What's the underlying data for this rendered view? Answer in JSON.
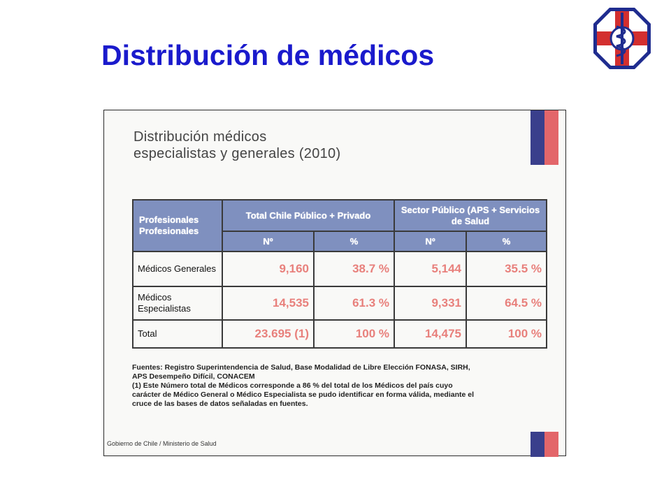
{
  "page": {
    "title": "Distribución de médicos"
  },
  "colors": {
    "title_blue": "#1a1acc",
    "header_blue": "#7f90bf",
    "value_red": "#e8807c",
    "stripe_navy": "#3a3f8c",
    "stripe_red": "#e3666a"
  },
  "logo": {
    "icon": "medical-cross-caduceus-icon"
  },
  "document": {
    "title_line1": "Distribución médicos",
    "title_line2": "especialistas y generales (2010)",
    "table": {
      "col_header_1": "Profesionales Profesionales",
      "col_header_2": "Total Chile Público + Privado",
      "col_header_3": "Sector Público (APS + Servicios de Salud",
      "sub_no_1": "Nº",
      "sub_pct_1": "%",
      "sub_no_2": "Nº",
      "sub_pct_2": "%",
      "rows": [
        {
          "label": "Médicos Generales",
          "total_no": "9,160",
          "total_pct": "38.7 %",
          "pub_no": "5,144",
          "pub_pct": "35.5 %"
        },
        {
          "label": "Médicos Especialistas",
          "total_no": "14,535",
          "total_pct": "61.3 %",
          "pub_no": "9,331",
          "pub_pct": "64.5 %"
        },
        {
          "label": "Total",
          "total_no": "23.695 (1)",
          "total_pct": "100 %",
          "pub_no": "14,475",
          "pub_pct": "100 %"
        }
      ]
    },
    "notes": [
      "Fuentes: Registro Superintendencia de Salud, Base Modalidad de Libre Elección FONASA, SIRH,",
      "APS Desempeño Difícil, CONACEM",
      "(1) Este Número total de Médicos corresponde a 86 % del total de los Médicos del país cuyo",
      "carácter de Médico General o Médico Especialista se pudo identificar en forma válida, mediante el",
      "cruce de las bases de datos señaladas en fuentes."
    ],
    "footer": "Gobierno de Chile / Ministerio de Salud"
  }
}
